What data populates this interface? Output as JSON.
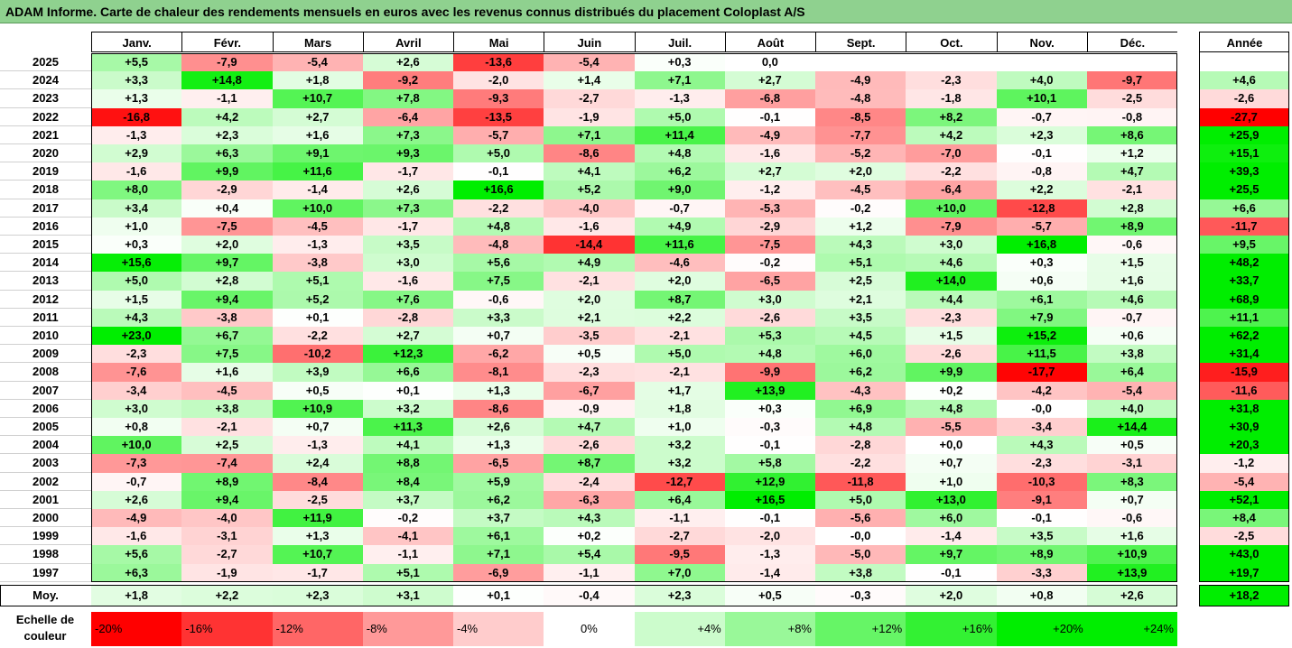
{
  "title": "ADAM Informe. Carte de chaleur des rendements mensuels en euros avec les revenus connus distribués du placement Coloplast A/S",
  "chart_data": {
    "type": "heatmap",
    "title": "ADAM Informe. Carte de chaleur des rendements mensuels en euros avec les revenus connus distribués du placement Coloplast A/S",
    "columns": [
      "Janv.",
      "Févr.",
      "Mars",
      "Avril",
      "Mai",
      "Juin",
      "Juil.",
      "Août",
      "Sept.",
      "Oct.",
      "Nov.",
      "Déc."
    ],
    "year_column": "Année",
    "rows": [
      {
        "year": "2025",
        "values": [
          "+5,5",
          "-7,9",
          "-5,4",
          "+2,6",
          "-13,6",
          "-5,4",
          "+0,3",
          "0,0",
          "",
          "",
          "",
          ""
        ],
        "annual": ""
      },
      {
        "year": "2024",
        "values": [
          "+3,3",
          "+14,8",
          "+1,8",
          "-9,2",
          "-2,0",
          "+1,4",
          "+7,1",
          "+2,7",
          "-4,9",
          "-2,3",
          "+4,0",
          "-9,7"
        ],
        "annual": "+4,6"
      },
      {
        "year": "2023",
        "values": [
          "+1,3",
          "-1,1",
          "+10,7",
          "+7,8",
          "-9,3",
          "-2,7",
          "-1,3",
          "-6,8",
          "-4,8",
          "-1,8",
          "+10,1",
          "-2,5"
        ],
        "annual": "-2,6"
      },
      {
        "year": "2022",
        "values": [
          "-16,8",
          "+4,2",
          "+2,7",
          "-6,4",
          "-13,5",
          "-1,9",
          "+5,0",
          "-0,1",
          "-8,5",
          "+8,2",
          "-0,7",
          "-0,8"
        ],
        "annual": "-27,7"
      },
      {
        "year": "2021",
        "values": [
          "-1,3",
          "+2,3",
          "+1,6",
          "+7,3",
          "-5,7",
          "+7,1",
          "+11,4",
          "-4,9",
          "-7,7",
          "+4,2",
          "+2,3",
          "+8,6"
        ],
        "annual": "+25,9"
      },
      {
        "year": "2020",
        "values": [
          "+2,9",
          "+6,3",
          "+9,1",
          "+9,3",
          "+5,0",
          "-8,6",
          "+4,8",
          "-1,6",
          "-5,2",
          "-7,0",
          "-0,1",
          "+1,2"
        ],
        "annual": "+15,1"
      },
      {
        "year": "2019",
        "values": [
          "-1,6",
          "+9,9",
          "+11,6",
          "-1,7",
          "-0,1",
          "+4,1",
          "+6,2",
          "+2,7",
          "+2,0",
          "-2,2",
          "-0,8",
          "+4,7"
        ],
        "annual": "+39,3"
      },
      {
        "year": "2018",
        "values": [
          "+8,0",
          "-2,9",
          "-1,4",
          "+2,6",
          "+16,6",
          "+5,2",
          "+9,0",
          "-1,2",
          "-4,5",
          "-6,4",
          "+2,2",
          "-2,1"
        ],
        "annual": "+25,5"
      },
      {
        "year": "2017",
        "values": [
          "+3,4",
          "+0,4",
          "+10,0",
          "+7,3",
          "-2,2",
          "-4,0",
          "-0,7",
          "-5,3",
          "-0,2",
          "+10,0",
          "-12,8",
          "+2,8"
        ],
        "annual": "+6,6"
      },
      {
        "year": "2016",
        "values": [
          "+1,0",
          "-7,5",
          "-4,5",
          "-1,7",
          "+4,8",
          "-1,6",
          "+4,9",
          "-2,9",
          "+1,2",
          "-7,9",
          "-5,7",
          "+8,9"
        ],
        "annual": "-11,7"
      },
      {
        "year": "2015",
        "values": [
          "+0,3",
          "+2,0",
          "-1,3",
          "+3,5",
          "-4,8",
          "-14,4",
          "+11,6",
          "-7,5",
          "+4,3",
          "+3,0",
          "+16,8",
          "-0,6"
        ],
        "annual": "+9,5"
      },
      {
        "year": "2014",
        "values": [
          "+15,6",
          "+9,7",
          "-3,8",
          "+3,0",
          "+5,6",
          "+4,9",
          "-4,6",
          "-0,2",
          "+5,1",
          "+4,6",
          "+0,3",
          "+1,5"
        ],
        "annual": "+48,2"
      },
      {
        "year": "2013",
        "values": [
          "+5,0",
          "+2,8",
          "+5,1",
          "-1,6",
          "+7,5",
          "-2,1",
          "+2,0",
          "-6,5",
          "+2,5",
          "+14,0",
          "+0,6",
          "+1,6"
        ],
        "annual": "+33,7"
      },
      {
        "year": "2012",
        "values": [
          "+1,5",
          "+9,4",
          "+5,2",
          "+7,6",
          "-0,6",
          "+2,0",
          "+8,7",
          "+3,0",
          "+2,1",
          "+4,4",
          "+6,1",
          "+4,6"
        ],
        "annual": "+68,9"
      },
      {
        "year": "2011",
        "values": [
          "+4,3",
          "-3,8",
          "+0,1",
          "-2,8",
          "+3,3",
          "+2,1",
          "+2,2",
          "-2,6",
          "+3,5",
          "-2,3",
          "+7,9",
          "-0,7"
        ],
        "annual": "+11,1"
      },
      {
        "year": "2010",
        "values": [
          "+23,0",
          "+6,7",
          "-2,2",
          "+2,7",
          "+0,7",
          "-3,5",
          "-2,1",
          "+5,3",
          "+4,5",
          "+1,5",
          "+15,2",
          "+0,6"
        ],
        "annual": "+62,2"
      },
      {
        "year": "2009",
        "values": [
          "-2,3",
          "+7,5",
          "-10,2",
          "+12,3",
          "-6,2",
          "+0,5",
          "+5,0",
          "+4,8",
          "+6,0",
          "-2,6",
          "+11,5",
          "+3,8"
        ],
        "annual": "+31,4"
      },
      {
        "year": "2008",
        "values": [
          "-7,6",
          "+1,6",
          "+3,9",
          "+6,6",
          "-8,1",
          "-2,3",
          "-2,1",
          "-9,9",
          "+6,2",
          "+9,9",
          "-17,7",
          "+6,4"
        ],
        "annual": "-15,9"
      },
      {
        "year": "2007",
        "values": [
          "-3,4",
          "-4,5",
          "+0,5",
          "+0,1",
          "+1,3",
          "-6,7",
          "+1,7",
          "+13,9",
          "-4,3",
          "+0,2",
          "-4,2",
          "-5,4"
        ],
        "annual": "-11,6"
      },
      {
        "year": "2006",
        "values": [
          "+3,0",
          "+3,8",
          "+10,9",
          "+3,2",
          "-8,6",
          "-0,9",
          "+1,8",
          "+0,3",
          "+6,9",
          "+4,8",
          "-0,0",
          "+4,0"
        ],
        "annual": "+31,8"
      },
      {
        "year": "2005",
        "values": [
          "+0,8",
          "-2,1",
          "+0,7",
          "+11,3",
          "+2,6",
          "+4,7",
          "+1,0",
          "-0,3",
          "+4,8",
          "-5,5",
          "-3,4",
          "+14,4"
        ],
        "annual": "+30,9"
      },
      {
        "year": "2004",
        "values": [
          "+10,0",
          "+2,5",
          "-1,3",
          "+4,1",
          "+1,3",
          "-2,6",
          "+3,2",
          "-0,1",
          "-2,8",
          "+0,0",
          "+4,3",
          "+0,5"
        ],
        "annual": "+20,3"
      },
      {
        "year": "2003",
        "values": [
          "-7,3",
          "-7,4",
          "+2,4",
          "+8,8",
          "-6,5",
          "+8,7",
          "+3,2",
          "+5,8",
          "-2,2",
          "+0,7",
          "-2,3",
          "-3,1"
        ],
        "annual": "-1,2"
      },
      {
        "year": "2002",
        "values": [
          "-0,7",
          "+8,9",
          "-8,4",
          "+8,4",
          "+5,9",
          "-2,4",
          "-12,7",
          "+12,9",
          "-11,8",
          "+1,0",
          "-10,3",
          "+8,3"
        ],
        "annual": "-5,4"
      },
      {
        "year": "2001",
        "values": [
          "+2,6",
          "+9,4",
          "-2,5",
          "+3,7",
          "+6,2",
          "-6,3",
          "+6,4",
          "+16,5",
          "+5,0",
          "+13,0",
          "-9,1",
          "+0,7"
        ],
        "annual": "+52,1"
      },
      {
        "year": "2000",
        "values": [
          "-4,9",
          "-4,0",
          "+11,9",
          "-0,2",
          "+3,7",
          "+4,3",
          "-1,1",
          "-0,1",
          "-5,6",
          "+6,0",
          "-0,1",
          "-0,6"
        ],
        "annual": "+8,4"
      },
      {
        "year": "1999",
        "values": [
          "-1,6",
          "-3,1",
          "+1,3",
          "-4,1",
          "+6,1",
          "+0,2",
          "-2,7",
          "-2,0",
          "-0,0",
          "-1,4",
          "+3,5",
          "+1,6"
        ],
        "annual": "-2,5"
      },
      {
        "year": "1998",
        "values": [
          "+5,6",
          "-2,7",
          "+10,7",
          "-1,1",
          "+7,1",
          "+5,4",
          "-9,5",
          "-1,3",
          "-5,0",
          "+9,7",
          "+8,9",
          "+10,9"
        ],
        "annual": "+43,0"
      },
      {
        "year": "1997",
        "values": [
          "+6,3",
          "-1,9",
          "-1,7",
          "+5,1",
          "-6,9",
          "-1,1",
          "+7,0",
          "-1,4",
          "+3,8",
          "-0,1",
          "-3,3",
          "+13,9"
        ],
        "annual": "+19,7"
      }
    ],
    "average": {
      "label": "Moy.",
      "values": [
        "+1,8",
        "+2,2",
        "+2,3",
        "+3,1",
        "+0,1",
        "-0,4",
        "+2,3",
        "+0,5",
        "-0,3",
        "+2,0",
        "+0,8",
        "+2,6"
      ],
      "annual": "+18,2"
    },
    "scale": {
      "label": "Echelle de couleur",
      "items": [
        "-20%",
        "-16%",
        "-12%",
        "-8%",
        "-4%",
        "0%",
        "+4%",
        "+8%",
        "+12%",
        "+16%",
        "+20%",
        "+24%"
      ],
      "values": [
        -20,
        -16,
        -12,
        -8,
        -4,
        0,
        4,
        8,
        12,
        16,
        20,
        24
      ]
    },
    "colors": {
      "negative_max": "#ff0000",
      "neutral": "#ffffff",
      "positive_max": "#00ee00"
    }
  }
}
